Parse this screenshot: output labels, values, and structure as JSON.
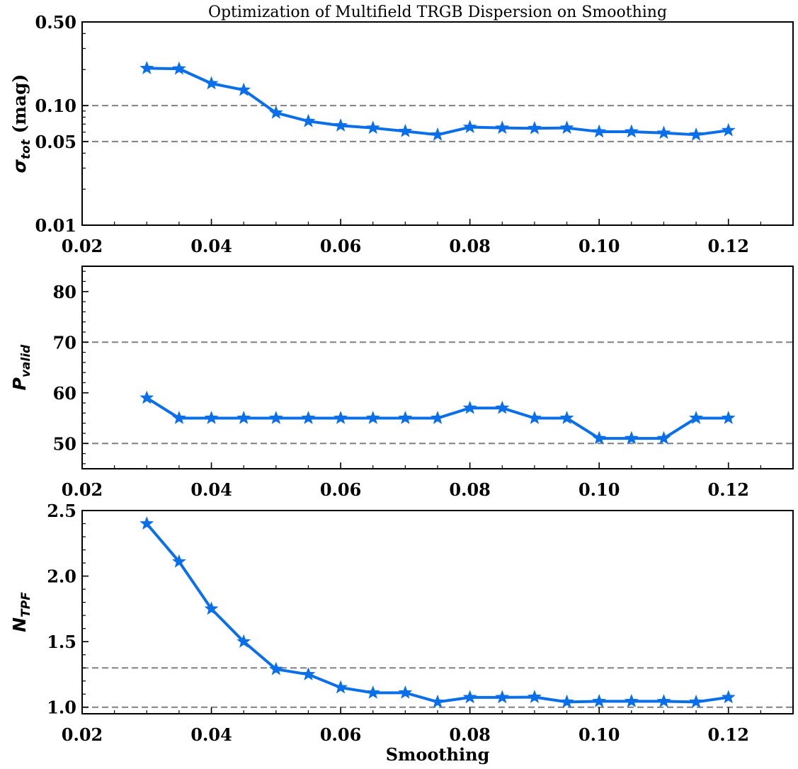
{
  "figure": {
    "title": "Optimization of Multifield TRGB Dispersion on Smoothing",
    "xlabel": "Smoothing"
  },
  "colors": {
    "series": "#0a6fe8",
    "reference": "#808080",
    "axis": "#000000"
  },
  "chart_data": [
    {
      "type": "line",
      "id": "sigma",
      "ylabel_main": "σ",
      "ylabel_sub": "tot",
      "ylabel_suffix": " (mag)",
      "yscale": "log",
      "xlim": [
        0.02,
        0.13
      ],
      "ylim": [
        0.01,
        0.5
      ],
      "xticks": [
        0.02,
        0.04,
        0.06,
        0.08,
        0.1,
        0.12
      ],
      "xtick_labels": [
        "0.02",
        "0.04",
        "0.06",
        "0.08",
        "0.10",
        "0.12"
      ],
      "yticks": [
        0.01,
        0.05,
        0.1,
        0.5
      ],
      "ytick_labels": [
        "0.01",
        "0.05",
        "0.10",
        "0.50"
      ],
      "reference_lines": [
        0.1,
        0.05
      ],
      "x": [
        0.03,
        0.035,
        0.04,
        0.045,
        0.05,
        0.055,
        0.06,
        0.065,
        0.07,
        0.075,
        0.08,
        0.085,
        0.09,
        0.095,
        0.1,
        0.105,
        0.11,
        0.115,
        0.12
      ],
      "y": [
        0.205,
        0.203,
        0.153,
        0.135,
        0.087,
        0.074,
        0.068,
        0.065,
        0.061,
        0.057,
        0.066,
        0.065,
        0.0645,
        0.065,
        0.0605,
        0.0605,
        0.059,
        0.057,
        0.062
      ],
      "marker": "star"
    },
    {
      "type": "line",
      "id": "pvalid",
      "ylabel_main": "P",
      "ylabel_sub": "valid",
      "ylabel_suffix": "",
      "yscale": "linear",
      "xlim": [
        0.02,
        0.13
      ],
      "ylim": [
        45,
        85
      ],
      "xticks": [
        0.02,
        0.04,
        0.06,
        0.08,
        0.1,
        0.12
      ],
      "xtick_labels": [
        "0.02",
        "0.04",
        "0.06",
        "0.08",
        "0.10",
        "0.12"
      ],
      "yticks": [
        50,
        60,
        70,
        80
      ],
      "ytick_labels": [
        "50",
        "60",
        "70",
        "80"
      ],
      "reference_lines": [
        70,
        50
      ],
      "x": [
        0.03,
        0.035,
        0.04,
        0.045,
        0.05,
        0.055,
        0.06,
        0.065,
        0.07,
        0.075,
        0.08,
        0.085,
        0.09,
        0.095,
        0.1,
        0.105,
        0.11,
        0.115,
        0.12
      ],
      "y": [
        59,
        55,
        55,
        55,
        55,
        55,
        55,
        55,
        55,
        55,
        57,
        57,
        55,
        55,
        51,
        51,
        51,
        55,
        55
      ],
      "marker": "star"
    },
    {
      "type": "line",
      "id": "ntpf",
      "ylabel_main": "N",
      "ylabel_sub": "TPF",
      "ylabel_suffix": "",
      "yscale": "linear",
      "xlim": [
        0.02,
        0.13
      ],
      "ylim": [
        0.95,
        2.5
      ],
      "xticks": [
        0.02,
        0.04,
        0.06,
        0.08,
        0.1,
        0.12
      ],
      "xtick_labels": [
        "0.02",
        "0.04",
        "0.06",
        "0.08",
        "0.10",
        "0.12"
      ],
      "yticks": [
        1.0,
        1.5,
        2.0,
        2.5
      ],
      "ytick_labels": [
        "1.0",
        "1.5",
        "2.0",
        "2.5"
      ],
      "reference_lines": [
        1.3,
        1.0
      ],
      "x": [
        0.03,
        0.035,
        0.04,
        0.045,
        0.05,
        0.055,
        0.06,
        0.065,
        0.07,
        0.075,
        0.08,
        0.085,
        0.09,
        0.095,
        0.1,
        0.105,
        0.11,
        0.115,
        0.12
      ],
      "y": [
        2.4,
        2.11,
        1.75,
        1.5,
        1.29,
        1.25,
        1.15,
        1.11,
        1.11,
        1.04,
        1.075,
        1.075,
        1.077,
        1.04,
        1.045,
        1.045,
        1.045,
        1.04,
        1.075
      ],
      "marker": "star"
    }
  ]
}
